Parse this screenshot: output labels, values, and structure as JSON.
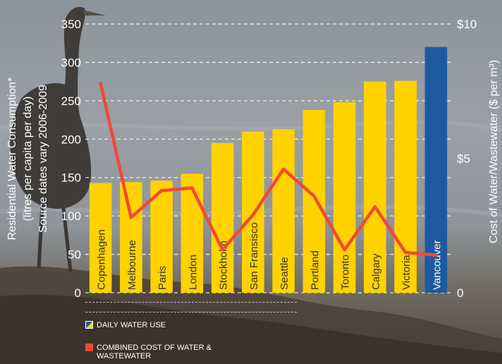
{
  "chart_data": {
    "type": "bar",
    "categories": [
      "Copenhagen",
      "Melbourne",
      "Paris",
      "London",
      "Stockholm",
      "San Fransisco",
      "Seattle",
      "Portland",
      "Toronto",
      "Calgary",
      "Victoria",
      "Vancouver"
    ],
    "series": [
      {
        "name": "DAILY WATER USE",
        "type": "bar",
        "axis": "left",
        "values": [
          143,
          144,
          146,
          155,
          195,
          210,
          213,
          238,
          248,
          275,
          276,
          320
        ],
        "color": "#ffd200",
        "highlight_color": "#1e5aa0",
        "highlight_index": 11
      },
      {
        "name": "COMBINED COST OF WATER & WASTEWATER",
        "type": "line",
        "axis": "right",
        "values": [
          7.8,
          2.8,
          3.8,
          3.9,
          1.6,
          2.9,
          4.6,
          3.6,
          1.6,
          3.2,
          1.5,
          1.4
        ],
        "color": "#ef4a36"
      }
    ],
    "ylabel_lines": [
      "Residential Water Consumption*",
      "(litres per capita per day)",
      "Source dates vary 2006-2009"
    ],
    "y2label": "Cost of Water/Wastewater ($ per m³)",
    "ylim": [
      0,
      350
    ],
    "yticks": [
      0,
      50,
      100,
      150,
      200,
      250,
      300,
      350
    ],
    "y2lim": [
      0,
      10
    ],
    "y2ticks": [
      {
        "value": 0,
        "label": "0"
      },
      {
        "value": 5,
        "label": "$5"
      },
      {
        "value": 10,
        "label": "$10"
      }
    ],
    "grid": true,
    "legend_position": "bottom-left"
  },
  "legend": {
    "water_label": "DAILY WATER USE",
    "cost_label": "COMBINED COST OF WATER & WASTEWATER"
  }
}
